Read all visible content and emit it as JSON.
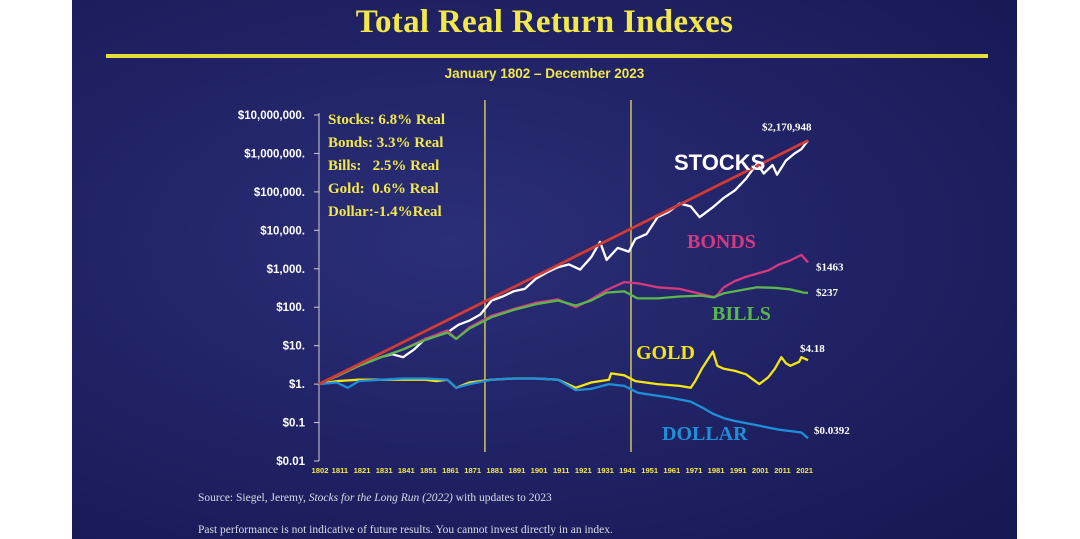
{
  "slide": {
    "title": "Total Real Return Indexes",
    "subtitle": "January 1802 – December 2023",
    "source_prefix": "Source: Siegel, Jeremy, ",
    "source_book": "Stocks for the Long Run (2022)",
    "source_suffix": " with updates to 2023",
    "disclaimer": "Past performance is not indicative of future results. You cannot invest directly in an index."
  },
  "chart_data": {
    "type": "line",
    "yscale": "log",
    "ylim": [
      0.01,
      10000000
    ],
    "xlim": [
      1802,
      2023
    ],
    "yticks": [
      {
        "v": 10000000,
        "label": "$10,000,000."
      },
      {
        "v": 1000000,
        "label": "$1,000,000."
      },
      {
        "v": 100000,
        "label": "$100,000."
      },
      {
        "v": 10000,
        "label": "$10,000."
      },
      {
        "v": 1000,
        "label": "$1,000."
      },
      {
        "v": 100,
        "label": "$100."
      },
      {
        "v": 10,
        "label": "$10."
      },
      {
        "v": 1,
        "label": "$1."
      },
      {
        "v": 0.1,
        "label": "$0.1"
      },
      {
        "v": 0.01,
        "label": "$0.01"
      }
    ],
    "xticks": [
      1802,
      1811,
      1821,
      1831,
      1841,
      1851,
      1861,
      1871,
      1881,
      1891,
      1901,
      1911,
      1921,
      1931,
      1941,
      1951,
      1961,
      1971,
      1981,
      1991,
      2001,
      2011,
      2021
    ],
    "vlines": [
      1877,
      1943
    ],
    "rates": [
      "Stocks: 6.8% Real",
      "Bonds: 3.3% Real",
      "Bills:   2.5% Real",
      "Gold:  0.6% Real",
      "Dollar:-1.4%Real"
    ],
    "trend": {
      "color": "#d23a36",
      "from": [
        1802,
        1
      ],
      "to": [
        2023,
        2170948
      ]
    },
    "series": [
      {
        "name": "STOCKS",
        "color": "#ffffff",
        "end_label": "$2,170,948",
        "points": [
          [
            1802,
            1
          ],
          [
            1810,
            1.7
          ],
          [
            1820,
            3
          ],
          [
            1830,
            5
          ],
          [
            1835,
            6
          ],
          [
            1840,
            5
          ],
          [
            1845,
            8
          ],
          [
            1850,
            15
          ],
          [
            1855,
            18
          ],
          [
            1860,
            22
          ],
          [
            1865,
            35
          ],
          [
            1870,
            45
          ],
          [
            1875,
            65
          ],
          [
            1880,
            150
          ],
          [
            1885,
            190
          ],
          [
            1890,
            260
          ],
          [
            1895,
            300
          ],
          [
            1900,
            550
          ],
          [
            1905,
            800
          ],
          [
            1910,
            1100
          ],
          [
            1915,
            1300
          ],
          [
            1920,
            950
          ],
          [
            1925,
            2000
          ],
          [
            1929,
            5000
          ],
          [
            1932,
            1700
          ],
          [
            1937,
            3500
          ],
          [
            1942,
            2800
          ],
          [
            1945,
            6000
          ],
          [
            1950,
            8000
          ],
          [
            1955,
            22000
          ],
          [
            1960,
            30000
          ],
          [
            1965,
            50000
          ],
          [
            1970,
            42000
          ],
          [
            1974,
            22000
          ],
          [
            1980,
            40000
          ],
          [
            1985,
            70000
          ],
          [
            1990,
            110000
          ],
          [
            1995,
            220000
          ],
          [
            2000,
            550000
          ],
          [
            2003,
            300000
          ],
          [
            2007,
            500000
          ],
          [
            2009,
            280000
          ],
          [
            2013,
            650000
          ],
          [
            2017,
            1000000
          ],
          [
            2020,
            1300000
          ],
          [
            2023,
            2170948
          ]
        ]
      },
      {
        "name": "BONDS",
        "color": "#d6397f",
        "end_label": "$1463",
        "points": [
          [
            1802,
            1
          ],
          [
            1810,
            1.6
          ],
          [
            1820,
            3
          ],
          [
            1830,
            5
          ],
          [
            1840,
            8
          ],
          [
            1850,
            15
          ],
          [
            1860,
            25
          ],
          [
            1864,
            15
          ],
          [
            1870,
            30
          ],
          [
            1880,
            60
          ],
          [
            1890,
            90
          ],
          [
            1900,
            130
          ],
          [
            1910,
            160
          ],
          [
            1918,
            100
          ],
          [
            1925,
            160
          ],
          [
            1932,
            280
          ],
          [
            1940,
            450
          ],
          [
            1946,
            420
          ],
          [
            1955,
            330
          ],
          [
            1965,
            300
          ],
          [
            1975,
            220
          ],
          [
            1981,
            180
          ],
          [
            1985,
            330
          ],
          [
            1990,
            480
          ],
          [
            1995,
            620
          ],
          [
            2000,
            750
          ],
          [
            2005,
            900
          ],
          [
            2010,
            1300
          ],
          [
            2015,
            1650
          ],
          [
            2020,
            2300
          ],
          [
            2023,
            1463
          ]
        ]
      },
      {
        "name": "BILLS",
        "color": "#5ab84a",
        "end_label": "$237",
        "points": [
          [
            1802,
            1
          ],
          [
            1810,
            1.6
          ],
          [
            1820,
            3
          ],
          [
            1830,
            5
          ],
          [
            1840,
            8
          ],
          [
            1850,
            14
          ],
          [
            1860,
            22
          ],
          [
            1864,
            15
          ],
          [
            1870,
            28
          ],
          [
            1880,
            55
          ],
          [
            1890,
            85
          ],
          [
            1900,
            120
          ],
          [
            1910,
            150
          ],
          [
            1918,
            110
          ],
          [
            1925,
            150
          ],
          [
            1932,
            240
          ],
          [
            1940,
            260
          ],
          [
            1946,
            170
          ],
          [
            1955,
            170
          ],
          [
            1965,
            190
          ],
          [
            1975,
            200
          ],
          [
            1980,
            180
          ],
          [
            1985,
            230
          ],
          [
            1990,
            260
          ],
          [
            2000,
            330
          ],
          [
            2008,
            320
          ],
          [
            2015,
            290
          ],
          [
            2021,
            240
          ],
          [
            2023,
            237
          ]
        ]
      },
      {
        "name": "GOLD",
        "color": "#f4e60f",
        "end_label": "$4.18",
        "points": [
          [
            1802,
            1
          ],
          [
            1810,
            1.2
          ],
          [
            1820,
            1.3
          ],
          [
            1830,
            1.3
          ],
          [
            1840,
            1.3
          ],
          [
            1850,
            1.3
          ],
          [
            1855,
            1.2
          ],
          [
            1860,
            1.3
          ],
          [
            1864,
            0.8
          ],
          [
            1870,
            1.1
          ],
          [
            1880,
            1.3
          ],
          [
            1890,
            1.4
          ],
          [
            1900,
            1.4
          ],
          [
            1910,
            1.3
          ],
          [
            1918,
            0.8
          ],
          [
            1925,
            1.1
          ],
          [
            1933,
            1.3
          ],
          [
            1934,
            1.9
          ],
          [
            1940,
            1.7
          ],
          [
            1945,
            1.2
          ],
          [
            1955,
            1.0
          ],
          [
            1965,
            0.9
          ],
          [
            1970,
            0.8
          ],
          [
            1972,
            1.2
          ],
          [
            1975,
            2.5
          ],
          [
            1980,
            7
          ],
          [
            1982,
            3
          ],
          [
            1985,
            2.5
          ],
          [
            1990,
            2.2
          ],
          [
            1995,
            1.8
          ],
          [
            2001,
            1.0
          ],
          [
            2005,
            1.5
          ],
          [
            2008,
            2.5
          ],
          [
            2011,
            5
          ],
          [
            2013,
            3.5
          ],
          [
            2015,
            3.0
          ],
          [
            2019,
            3.8
          ],
          [
            2020,
            5
          ],
          [
            2023,
            4.18
          ]
        ]
      },
      {
        "name": "DOLLAR",
        "color": "#1f8fd8",
        "end_label": "$0.0392",
        "points": [
          [
            1802,
            1
          ],
          [
            1810,
            1.1
          ],
          [
            1815,
            0.8
          ],
          [
            1820,
            1.2
          ],
          [
            1830,
            1.3
          ],
          [
            1840,
            1.4
          ],
          [
            1850,
            1.4
          ],
          [
            1860,
            1.3
          ],
          [
            1864,
            0.8
          ],
          [
            1870,
            1.0
          ],
          [
            1880,
            1.3
          ],
          [
            1890,
            1.4
          ],
          [
            1900,
            1.4
          ],
          [
            1910,
            1.3
          ],
          [
            1918,
            0.7
          ],
          [
            1925,
            0.75
          ],
          [
            1933,
            1.0
          ],
          [
            1940,
            0.9
          ],
          [
            1946,
            0.6
          ],
          [
            1950,
            0.55
          ],
          [
            1960,
            0.45
          ],
          [
            1970,
            0.35
          ],
          [
            1975,
            0.25
          ],
          [
            1980,
            0.17
          ],
          [
            1985,
            0.13
          ],
          [
            1990,
            0.11
          ],
          [
            2000,
            0.085
          ],
          [
            2010,
            0.065
          ],
          [
            2020,
            0.055
          ],
          [
            2023,
            0.0392
          ]
        ]
      }
    ]
  }
}
